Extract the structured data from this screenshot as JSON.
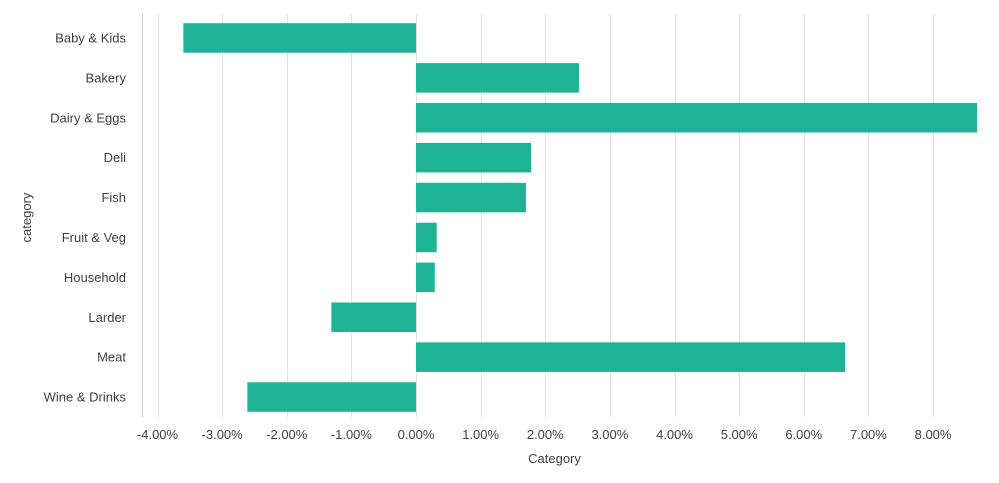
{
  "chart_data": {
    "type": "bar",
    "orientation": "horizontal",
    "categories": [
      "Baby & Kids",
      "Bakery",
      "Dairy & Eggs",
      "Deli",
      "Fish",
      "Fruit & Veg",
      "Household",
      "Larder",
      "Meat",
      "Wine & Drinks"
    ],
    "values": [
      -0.036,
      0.0252,
      0.0868,
      0.0178,
      0.017,
      0.0032,
      0.0029,
      -0.0131,
      0.0664,
      -0.0261
    ],
    "x_ticks": [
      -0.04,
      -0.03,
      -0.02,
      -0.01,
      0.0,
      0.01,
      0.02,
      0.03,
      0.04,
      0.05,
      0.06,
      0.07,
      0.08
    ],
    "x_tick_labels": [
      "-4.00%",
      "-3.00%",
      "-2.00%",
      "-1.00%",
      "0.00%",
      "1.00%",
      "2.00%",
      "3.00%",
      "4.00%",
      "5.00%",
      "6.00%",
      "7.00%",
      "8.00%"
    ],
    "xlim": [
      -0.0424,
      0.0868
    ],
    "xlabel": "Category",
    "ylabel": "category",
    "bar_color": "#1db394",
    "grid": true,
    "legend": false
  }
}
